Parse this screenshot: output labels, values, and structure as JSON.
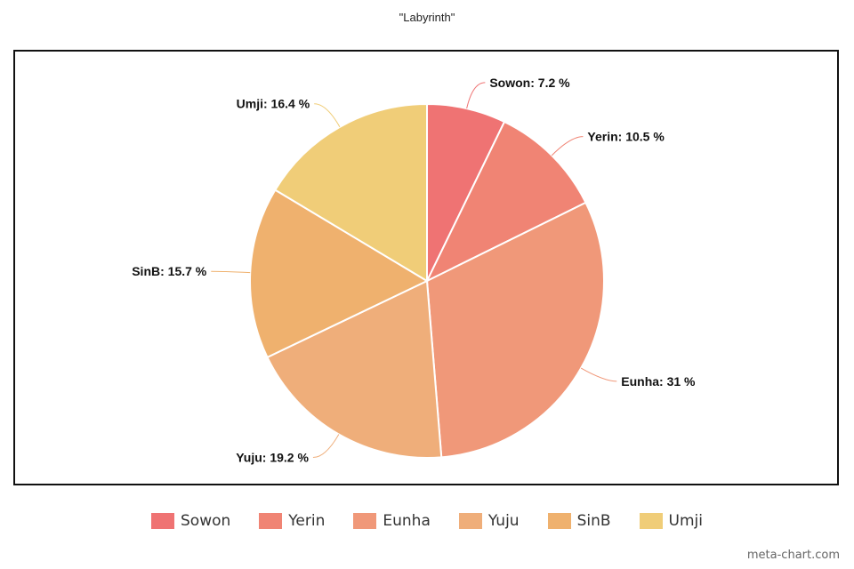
{
  "chart_data": {
    "type": "pie",
    "title": "\"Labyrinth\"",
    "categories": [
      "Sowon",
      "Yerin",
      "Eunha",
      "Yuju",
      "SinB",
      "Umji"
    ],
    "values": [
      7.2,
      10.5,
      31,
      19.2,
      15.7,
      16.4
    ],
    "labels": [
      "Sowon: 7.2 %",
      "Yerin: 10.5 %",
      "Eunha: 31 %",
      "Yuju: 19.2 %",
      "SinB: 15.7 %",
      "Umji: 16.4 %"
    ],
    "colors": [
      "#ef7373",
      "#f08474",
      "#f09879",
      "#efae7a",
      "#efb16e",
      "#f0cd78"
    ],
    "start_angle": "12 o'clock, clockwise",
    "legend_position": "bottom"
  },
  "watermark": "meta-chart.com"
}
